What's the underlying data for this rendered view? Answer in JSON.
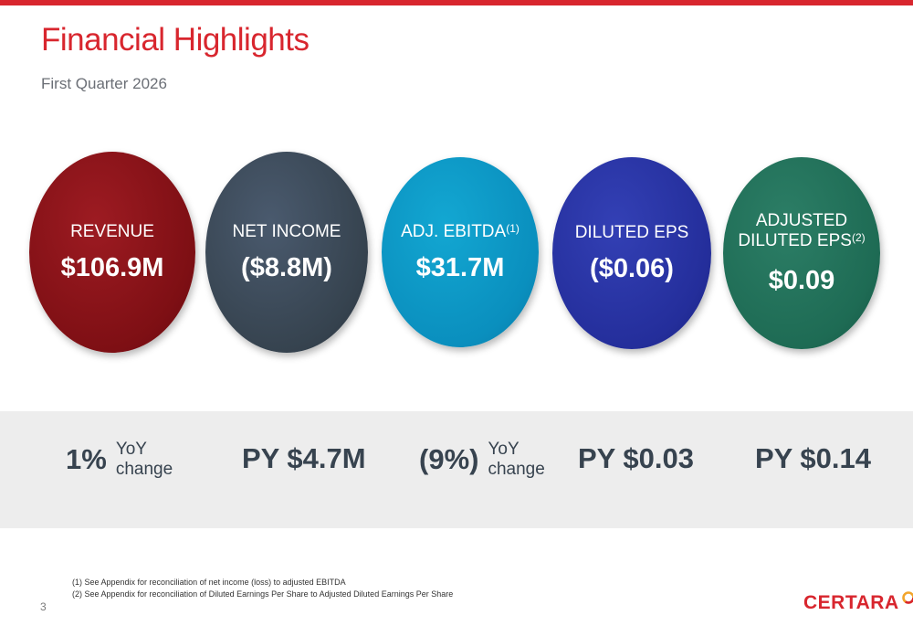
{
  "header": {
    "title": "Financial Highlights",
    "subtitle": "First Quarter 2026"
  },
  "metrics": [
    {
      "label": "REVENUE",
      "value": "$106.9M",
      "color": "#7e0f14"
    },
    {
      "label": "NET INCOME",
      "value": "($8.8M)",
      "color": "#36434f"
    },
    {
      "label": "ADJ. EBITDA",
      "footnote": "(1)",
      "value": "$31.7M",
      "color": "#0a8fbe"
    },
    {
      "label": "DILUTED EPS",
      "value": "($0.06)",
      "color": "#242e9b"
    },
    {
      "label_line1": "ADJUSTED",
      "label_line2": "DILUTED EPS",
      "footnote": "(2)",
      "value": "$0.09",
      "color": "#1e6b54"
    }
  ],
  "comparisons": [
    {
      "value": "1%",
      "note_line1": "YoY",
      "note_line2": "change"
    },
    {
      "value": "PY $4.7M"
    },
    {
      "value": "(9%)",
      "note_line1": "YoY",
      "note_line2": "change"
    },
    {
      "value": "PY $0.03"
    },
    {
      "value": "PY $0.14"
    }
  ],
  "footnotes": [
    "(1) See Appendix for reconciliation of net income (loss) to adjusted EBITDA",
    "(2) See Appendix for reconciliation of Diluted Earnings Per Share to Adjusted Diluted Earnings Per Share"
  ],
  "page_number": "3",
  "logo": {
    "text": "CERTARA",
    "icon": "certara-mark-icon"
  },
  "colors": {
    "accent": "#d8262e",
    "band": "#ededed",
    "text_dark": "#37434f"
  }
}
